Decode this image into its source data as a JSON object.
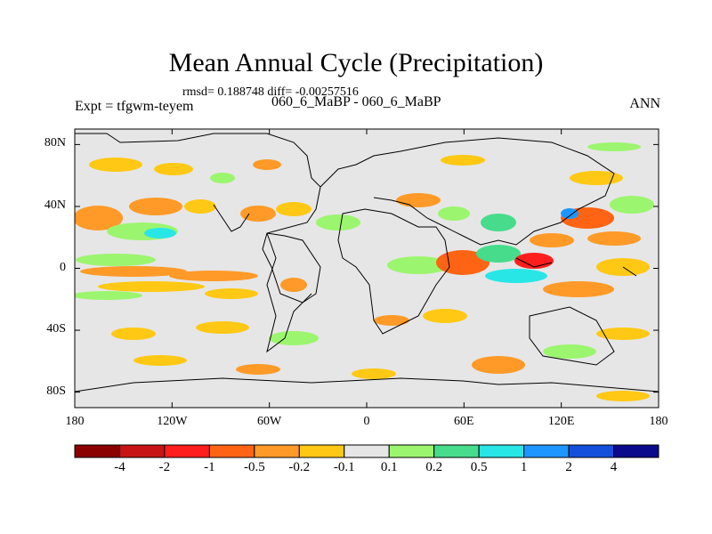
{
  "header": {
    "title": "Mean Annual Cycle (Precipitation)",
    "stats": "rmsd= 0.188748 diff= -0.00257516",
    "experiment": "Expt = tfgwm-teyem",
    "comparison": "060_6_MaBP - 060_6_MaBP",
    "period": "ANN"
  },
  "axes": {
    "y_labels": [
      "80N",
      "40N",
      "0",
      "40S",
      "80S"
    ],
    "y_values": [
      80,
      40,
      0,
      -40,
      -80
    ],
    "x_labels": [
      "180",
      "120W",
      "60W",
      "0",
      "60E",
      "120E",
      "180"
    ],
    "x_values": [
      -180,
      -120,
      -60,
      0,
      60,
      120,
      180
    ]
  },
  "colorbar": {
    "colors": [
      "#8b0000",
      "#c81414",
      "#ff1e1e",
      "#ff6414",
      "#ff9a28",
      "#ffc814",
      "#e6e6e6",
      "#9cf56e",
      "#46dc8c",
      "#28e6e6",
      "#1e96ff",
      "#1450dc",
      "#0a0a8c"
    ],
    "labels": [
      "-4",
      "-2",
      "-1",
      "-0.5",
      "-0.2",
      "-0.1",
      "0.1",
      "0.2",
      "0.5",
      "1",
      "2",
      "4"
    ]
  },
  "map_colors": {
    "background": "#e6e6e6",
    "coast": "#000000"
  }
}
